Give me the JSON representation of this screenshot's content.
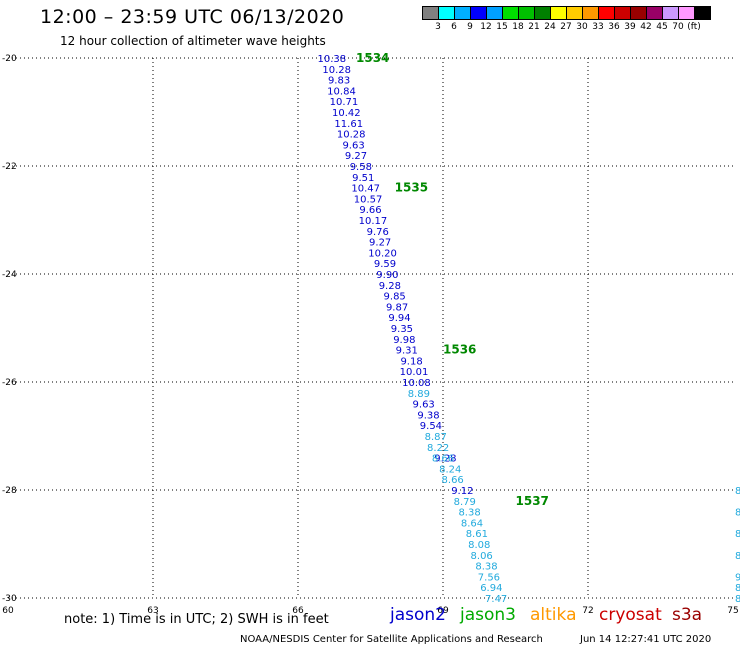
{
  "header": {
    "title": "12:00 – 23:59 UTC 06/13/2020",
    "subtitle": "12 hour collection of altimeter wave heights"
  },
  "color_scale": {
    "colors": [
      "#808080",
      "#00ffff",
      "#00b0ff",
      "#0000ff",
      "#00a0ff",
      "#00e000",
      "#00c000",
      "#008000",
      "#ffff00",
      "#ffcc00",
      "#ff9900",
      "#ff0000",
      "#cc0000",
      "#990000",
      "#990066",
      "#cc99ff",
      "#ff99ff",
      "#000000"
    ],
    "labels": [
      "3",
      "6",
      "9",
      "12",
      "15",
      "18",
      "21",
      "24",
      "27",
      "30",
      "33",
      "36",
      "39",
      "42",
      "45",
      "70",
      "(ft)"
    ]
  },
  "chart_data": {
    "type": "scatter",
    "title": "12:00 – 23:59 UTC 06/13/2020",
    "xlim": [
      60,
      75
    ],
    "ylim": [
      -30,
      -20
    ],
    "x_ticks": [
      "60",
      "63",
      "66",
      "69",
      "72",
      "75"
    ],
    "y_ticks": [
      "-20",
      "-22",
      "-24",
      "-26",
      "-28",
      "-30"
    ],
    "grid": true,
    "series": [
      {
        "name": "jason2",
        "color": "#0000cc",
        "points": [
          {
            "x": 66.7,
            "y": -20.0,
            "v": "10.38"
          },
          {
            "x": 66.8,
            "y": -20.2,
            "v": "10.28"
          },
          {
            "x": 66.85,
            "y": -20.4,
            "v": "9.83"
          },
          {
            "x": 66.9,
            "y": -20.6,
            "v": "10.84"
          },
          {
            "x": 66.95,
            "y": -20.8,
            "v": "10.71"
          },
          {
            "x": 67.0,
            "y": -21.0,
            "v": "10.42"
          },
          {
            "x": 67.05,
            "y": -21.2,
            "v": "11.61"
          },
          {
            "x": 67.1,
            "y": -21.4,
            "v": "10.28"
          },
          {
            "x": 67.15,
            "y": -21.6,
            "v": "9.63"
          },
          {
            "x": 67.2,
            "y": -21.8,
            "v": "9.27"
          },
          {
            "x": 67.3,
            "y": -22.0,
            "v": "9.58"
          },
          {
            "x": 67.35,
            "y": -22.2,
            "v": "9.51"
          },
          {
            "x": 67.4,
            "y": -22.4,
            "v": "10.47"
          },
          {
            "x": 67.45,
            "y": -22.6,
            "v": "10.57"
          },
          {
            "x": 67.5,
            "y": -22.8,
            "v": "9.66"
          },
          {
            "x": 67.55,
            "y": -23.0,
            "v": "10.17"
          },
          {
            "x": 67.65,
            "y": -23.2,
            "v": "9.76"
          },
          {
            "x": 67.7,
            "y": -23.4,
            "v": "9.27"
          },
          {
            "x": 67.75,
            "y": -23.6,
            "v": "10.20"
          },
          {
            "x": 67.8,
            "y": -23.8,
            "v": "9.59"
          },
          {
            "x": 67.85,
            "y": -24.0,
            "v": "9.90"
          },
          {
            "x": 67.9,
            "y": -24.2,
            "v": "9.28"
          },
          {
            "x": 68.0,
            "y": -24.4,
            "v": "9.85"
          },
          {
            "x": 68.05,
            "y": -24.6,
            "v": "9.87"
          },
          {
            "x": 68.1,
            "y": -24.8,
            "v": "9.94"
          },
          {
            "x": 68.15,
            "y": -25.0,
            "v": "9.35"
          },
          {
            "x": 68.2,
            "y": -25.2,
            "v": "9.98"
          },
          {
            "x": 68.25,
            "y": -25.4,
            "v": "9.31"
          },
          {
            "x": 68.35,
            "y": -25.6,
            "v": "9.18"
          },
          {
            "x": 68.4,
            "y": -25.8,
            "v": "10.01"
          },
          {
            "x": 68.45,
            "y": -26.0,
            "v": "10.08"
          },
          {
            "x": 68.6,
            "y": -26.4,
            "v": "9.63"
          },
          {
            "x": 68.7,
            "y": -26.6,
            "v": "9.38"
          },
          {
            "x": 68.75,
            "y": -26.8,
            "v": "9.54"
          },
          {
            "x": 69.05,
            "y": -27.4,
            "v": "9.28"
          },
          {
            "x": 69.4,
            "y": -28.0,
            "v": "9.12"
          }
        ]
      },
      {
        "name": "",
        "color": "#22aadd",
        "points": [
          {
            "x": 68.5,
            "y": -26.2,
            "v": "8.89"
          },
          {
            "x": 68.85,
            "y": -27.0,
            "v": "8.87"
          },
          {
            "x": 68.9,
            "y": -27.2,
            "v": "8.22"
          },
          {
            "x": 69.0,
            "y": -27.4,
            "v": "8.66"
          },
          {
            "x": 69.15,
            "y": -27.6,
            "v": "8.24"
          },
          {
            "x": 69.2,
            "y": -27.8,
            "v": "8.66"
          },
          {
            "x": 69.45,
            "y": -28.2,
            "v": "8.79"
          },
          {
            "x": 69.55,
            "y": -28.4,
            "v": "8.38"
          },
          {
            "x": 69.6,
            "y": -28.6,
            "v": "8.64"
          },
          {
            "x": 69.7,
            "y": -28.8,
            "v": "8.61"
          },
          {
            "x": 69.75,
            "y": -29.0,
            "v": "8.08"
          },
          {
            "x": 69.8,
            "y": -29.2,
            "v": "8.06"
          },
          {
            "x": 69.9,
            "y": -29.4,
            "v": "8.38"
          },
          {
            "x": 69.95,
            "y": -29.6,
            "v": "7.56"
          },
          {
            "x": 70.0,
            "y": -29.8,
            "v": "6.94"
          },
          {
            "x": 70.1,
            "y": -30.0,
            "v": "7.47"
          }
        ]
      }
    ],
    "pass_labels": [
      {
        "x": 67.2,
        "y": -20.0,
        "text": "1534"
      },
      {
        "x": 68.0,
        "y": -22.4,
        "text": "1535"
      },
      {
        "x": 69.0,
        "y": -25.4,
        "text": "1536"
      },
      {
        "x": 70.5,
        "y": -28.2,
        "text": "1537"
      }
    ],
    "edge_labels": [
      {
        "y": -28.0,
        "text": "8"
      },
      {
        "y": -28.4,
        "text": "8"
      },
      {
        "y": -28.8,
        "text": "8"
      },
      {
        "y": -29.2,
        "text": "8"
      },
      {
        "y": -29.6,
        "text": "9"
      },
      {
        "y": -29.8,
        "text": "8"
      },
      {
        "y": -30.0,
        "text": "8"
      }
    ]
  },
  "note": "note: 1) Time is in UTC; 2) SWH is in feet",
  "legend": [
    {
      "name": "jason2",
      "color": "#0000cc"
    },
    {
      "name": "jason3",
      "color": "#00aa00"
    },
    {
      "name": "altika",
      "color": "#ff9900"
    },
    {
      "name": "cryosat",
      "color": "#cc0000"
    },
    {
      "name": "s3a",
      "color": "#990000"
    }
  ],
  "footer": {
    "credit": "NOAA/NESDIS Center for Satellite Applications and Research",
    "timestamp": "Jun 14 12:27:41 UTC 2020"
  }
}
